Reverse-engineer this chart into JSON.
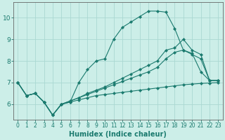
{
  "xlabel": "Humidex (Indice chaleur)",
  "bg_color": "#cceee8",
  "line_color": "#1a7a6e",
  "grid_color": "#aad8d2",
  "xlim": [
    -0.5,
    23.5
  ],
  "ylim": [
    5.3,
    10.7
  ],
  "yticks": [
    6,
    7,
    8,
    9,
    10
  ],
  "xticks": [
    0,
    1,
    2,
    3,
    4,
    5,
    6,
    7,
    8,
    9,
    10,
    11,
    12,
    13,
    14,
    15,
    16,
    17,
    18,
    19,
    20,
    21,
    22,
    23
  ],
  "series": [
    [
      7.0,
      6.4,
      6.5,
      6.1,
      5.5,
      6.0,
      6.1,
      7.0,
      7.6,
      8.0,
      8.1,
      9.0,
      9.55,
      9.8,
      10.05,
      10.3,
      10.3,
      10.25,
      9.5,
      8.5,
      8.35,
      7.5,
      7.1,
      7.1
    ],
    [
      7.0,
      6.4,
      6.5,
      6.1,
      5.5,
      6.0,
      6.15,
      6.3,
      6.5,
      6.65,
      6.8,
      7.0,
      7.2,
      7.4,
      7.6,
      7.8,
      8.0,
      8.5,
      8.6,
      9.0,
      8.5,
      8.3,
      7.1,
      7.1
    ],
    [
      7.0,
      6.4,
      6.5,
      6.1,
      5.5,
      6.0,
      6.15,
      6.3,
      6.45,
      6.6,
      6.75,
      6.9,
      7.05,
      7.2,
      7.35,
      7.5,
      7.7,
      8.1,
      8.4,
      8.5,
      8.3,
      8.1,
      7.1,
      7.1
    ],
    [
      7.0,
      6.4,
      6.5,
      6.1,
      5.5,
      6.0,
      6.1,
      6.2,
      6.3,
      6.4,
      6.45,
      6.5,
      6.55,
      6.6,
      6.65,
      6.7,
      6.75,
      6.8,
      6.85,
      6.9,
      6.93,
      6.96,
      6.98,
      7.0
    ]
  ]
}
